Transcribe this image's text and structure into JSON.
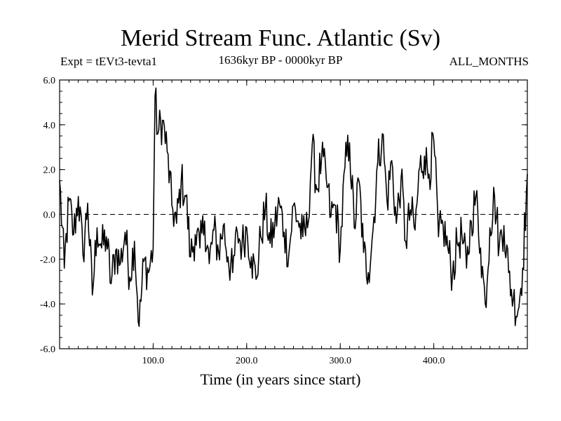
{
  "chart_data": {
    "type": "line",
    "title": "Merid Stream Func. Atlantic (Sv)",
    "subtitle_left": "Expt = tEVt3-tevta1",
    "subtitle_center": "1636kyr BP - 0000kyr BP",
    "subtitle_right": "ALL_MONTHS",
    "xlabel": "Time (in years since start)",
    "ylabel": "",
    "xlim": [
      0,
      500
    ],
    "ylim": [
      -6.0,
      6.0
    ],
    "xticks": [
      100,
      200,
      300,
      400
    ],
    "xtick_labels": [
      "100.0",
      "200.0",
      "300.0",
      "400.0"
    ],
    "yticks": [
      6,
      4,
      2,
      0,
      -2,
      -4,
      -6
    ],
    "ytick_labels": [
      "6.0",
      "4.0",
      "2.0",
      "0.0",
      "-2.0",
      "-4.0",
      "-6.0"
    ],
    "reference_line": 0,
    "series": [
      {
        "name": "Merid Stream Func. Atlantic",
        "x": [
          0,
          5,
          10,
          15,
          20,
          25,
          30,
          35,
          40,
          45,
          50,
          55,
          60,
          65,
          70,
          75,
          80,
          85,
          90,
          95,
          100,
          102,
          105,
          110,
          115,
          120,
          125,
          130,
          135,
          140,
          145,
          150,
          155,
          160,
          165,
          170,
          175,
          180,
          185,
          190,
          195,
          200,
          205,
          210,
          215,
          220,
          225,
          230,
          235,
          240,
          245,
          250,
          255,
          260,
          265,
          270,
          275,
          280,
          285,
          290,
          295,
          300,
          305,
          310,
          315,
          320,
          325,
          330,
          335,
          340,
          345,
          350,
          355,
          360,
          365,
          370,
          375,
          380,
          385,
          390,
          395,
          400,
          405,
          410,
          415,
          420,
          425,
          430,
          435,
          440,
          445,
          450,
          455,
          460,
          465,
          470,
          475,
          480,
          485,
          490,
          495,
          500
        ],
        "values": [
          1.5,
          -2.4,
          0.6,
          -0.9,
          0.8,
          -1.8,
          0.5,
          -3.6,
          -0.6,
          -1.5,
          -1.0,
          -3.1,
          -1.6,
          -2.2,
          -0.8,
          -2.8,
          -1.2,
          -5.0,
          -2.1,
          -2.6,
          -1.5,
          5.3,
          3.6,
          4.2,
          2.8,
          0.4,
          -0.4,
          1.5,
          0.8,
          -1.9,
          -0.9,
          -1.5,
          -0.3,
          -2.2,
          -0.7,
          -1.7,
          -0.5,
          -1.9,
          -2.6,
          -0.8,
          -1.4,
          -0.6,
          -1.9,
          -2.9,
          -1.0,
          0.3,
          -1.3,
          -0.5,
          0.5,
          -0.8,
          -1.8,
          0.4,
          -0.3,
          -1.0,
          -0.6,
          3.1,
          1.1,
          2.5,
          1.6,
          -0.1,
          0.4,
          -1.6,
          2.1,
          3.2,
          -0.6,
          1.5,
          -1.7,
          -2.6,
          -0.7,
          2.3,
          3.6,
          0.6,
          2.4,
          -0.4,
          1.6,
          -1.2,
          0.2,
          -0.7,
          2.1,
          2.6,
          1.8,
          3.3,
          -1.0,
          -0.5,
          -1.5,
          -2.7,
          -1.3,
          -0.9,
          -2.4,
          -0.3,
          0.8,
          -1.5,
          -4.0,
          -0.6,
          0.8,
          -1.4,
          -0.5,
          -2.6,
          -3.8,
          -4.3,
          -2.4,
          1.8
        ]
      }
    ]
  }
}
